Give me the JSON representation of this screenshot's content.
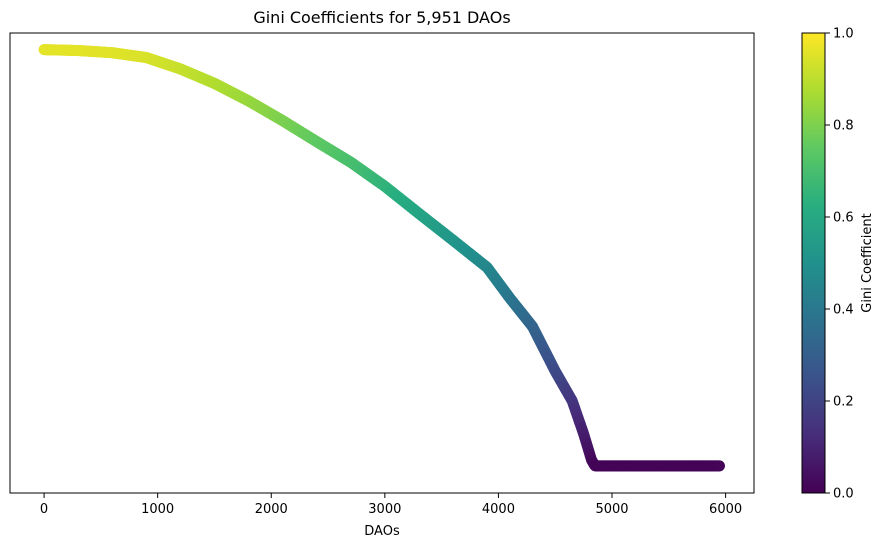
{
  "chart_data": {
    "type": "scatter",
    "title": "Gini Coefficients for 5,951 DAOs",
    "xlabel": "DAOs",
    "ylabel": "",
    "xlim": [
      -300,
      6250
    ],
    "ylim": [
      -0.05,
      1.0
    ],
    "x_ticks": [
      "0",
      "1000",
      "2000",
      "3000",
      "4000",
      "5000",
      "6000"
    ],
    "y_ticks_shown": false,
    "grid": false,
    "colormap": "viridis",
    "colorbar": {
      "label": "Gini Coefficient",
      "range": [
        0.0,
        1.0
      ],
      "ticks": [
        "0.0",
        "0.2",
        "0.4",
        "0.6",
        "0.8",
        "1.0"
      ]
    },
    "n_points": 5951,
    "curve_x": [
      0,
      300,
      600,
      900,
      1200,
      1500,
      1800,
      2100,
      2400,
      2700,
      3000,
      3300,
      3600,
      3900,
      4100,
      4300,
      4500,
      4650,
      4750,
      4820,
      4850,
      5951
    ],
    "curve_y": [
      0.962,
      0.96,
      0.955,
      0.944,
      0.918,
      0.885,
      0.845,
      0.8,
      0.752,
      0.705,
      0.65,
      0.588,
      0.527,
      0.465,
      0.395,
      0.33,
      0.228,
      0.16,
      0.085,
      0.025,
      0.012,
      0.012
    ]
  }
}
